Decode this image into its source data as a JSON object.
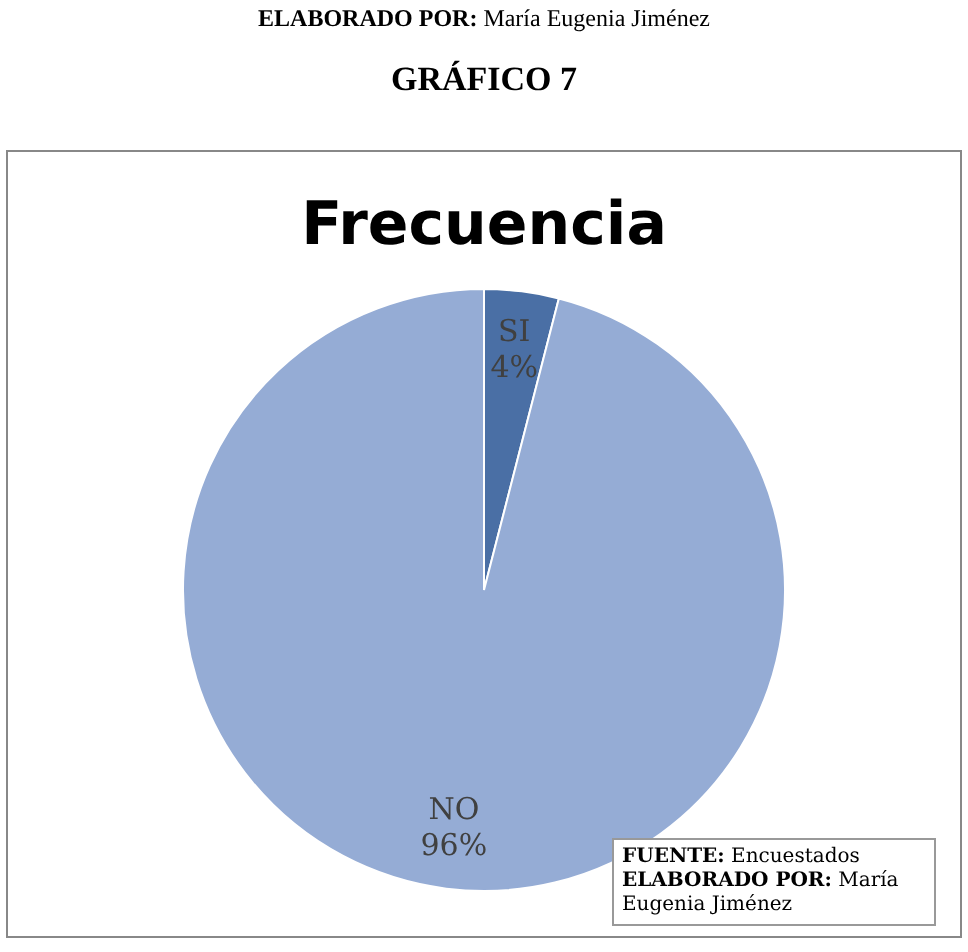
{
  "chart_data": {
    "type": "pie",
    "title": "Frecuencia",
    "categories": [
      "SI",
      "NO"
    ],
    "values": [
      4,
      96
    ],
    "colors": [
      "#4a6fa5",
      "#95acd5"
    ],
    "value_labels": [
      "4%",
      "96%"
    ],
    "legend": false,
    "annotations": [
      "ELABORADO POR: María Eugenia Jiménez",
      "GRÁFICO 7",
      "FUENTE: Encuestados",
      "ELABORADO POR:  María Eugenia Jiménez"
    ]
  }
}
